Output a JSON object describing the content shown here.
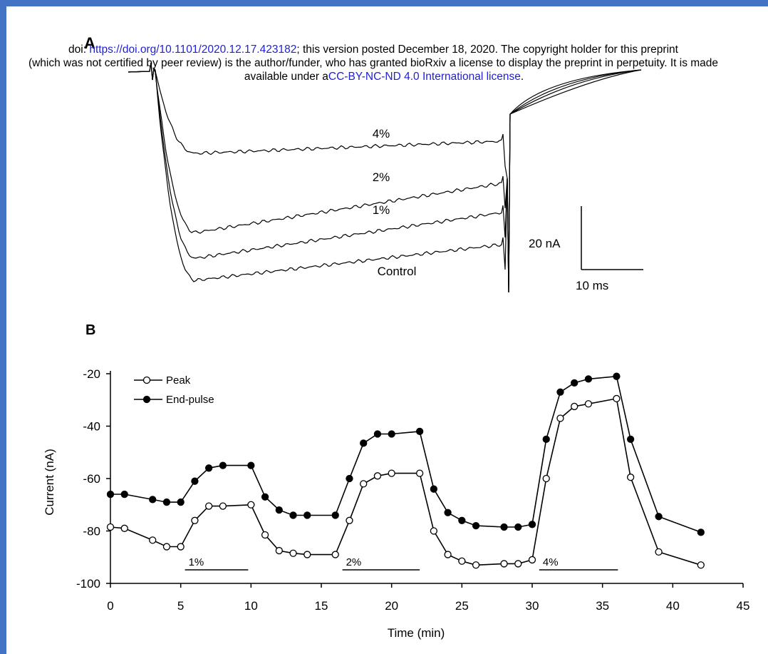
{
  "banner": {
    "line1_prefix": "doi: ",
    "line1_link": "https://doi.org/10.1101/2020.12.17.423182",
    "line1_suffix": "; this version posted December 18, 2020. The copyright holder for this preprint",
    "line2": "(which was not certified by peer review) is the author/funder, who has granted bioRxiv a license to display the preprint in perpetuity. It is made",
    "line3_prefix": "available under a",
    "line3_link": "CC-BY-NC-ND 4.0 International license",
    "line3_suffix": "."
  },
  "panel_a": {
    "label": "A",
    "trace_labels": [
      "4%",
      "2%",
      "1%",
      "Control"
    ],
    "scale_bar": {
      "current_label": "20 nA",
      "time_label": "10 ms"
    }
  },
  "colors": {
    "frame": "#4472c4",
    "link": "#1f1fd6",
    "ink": "#000000"
  },
  "chart_data": {
    "type": "line",
    "panel_label": "B",
    "xlabel": "Time (min)",
    "ylabel": "Current (nA)",
    "xlim": [
      0,
      45
    ],
    "ylim": [
      -100,
      -20
    ],
    "xticks": [
      0,
      5,
      10,
      15,
      20,
      25,
      30,
      35,
      40,
      45
    ],
    "yticks": [
      -20,
      -40,
      -60,
      -80,
      -100
    ],
    "legend_position": "top-left",
    "series": [
      {
        "name": "Peak",
        "marker": "open-circle",
        "x": [
          0,
          1,
          3,
          4,
          5,
          6,
          7,
          8,
          10,
          11,
          12,
          13,
          14,
          16,
          17,
          18,
          19,
          20,
          22,
          23,
          24,
          25,
          26,
          28,
          29,
          30,
          31,
          32,
          33,
          34,
          36,
          37,
          39,
          42
        ],
        "y": [
          -78.5,
          -79,
          -83.5,
          -86,
          -86,
          -76,
          -70.5,
          -70.5,
          -70,
          -81.5,
          -87.5,
          -88.5,
          -89,
          -89,
          -76,
          -62,
          -59,
          -58,
          -58,
          -80,
          -89,
          -91.5,
          -93,
          -92.5,
          -92.5,
          -91,
          -60,
          -37,
          -32.5,
          -31.5,
          -29.5,
          -59.5,
          -88,
          -93
        ]
      },
      {
        "name": "End-pulse",
        "marker": "filled-circle",
        "x": [
          0,
          1,
          3,
          4,
          5,
          6,
          7,
          8,
          10,
          11,
          12,
          13,
          14,
          16,
          17,
          18,
          19,
          20,
          22,
          23,
          24,
          25,
          26,
          28,
          29,
          30,
          31,
          32,
          33,
          34,
          36,
          37,
          39,
          42
        ],
        "y": [
          -66,
          -66,
          -68,
          -69,
          -69,
          -61,
          -56,
          -55,
          -55,
          -67,
          -72,
          -74,
          -74,
          -74,
          -60,
          -46.5,
          -43,
          -43,
          -42,
          -64,
          -73,
          -76,
          -78,
          -78.5,
          -78.5,
          -77.5,
          -45,
          -27,
          -23.5,
          -22,
          -21,
          -45,
          -74.5,
          -80.5
        ]
      }
    ],
    "treatment_bars": [
      {
        "label": "1%",
        "start": 5.3,
        "end": 9.8
      },
      {
        "label": "2%",
        "start": 16.5,
        "end": 22
      },
      {
        "label": "4%",
        "start": 30.5,
        "end": 36.1
      }
    ]
  }
}
